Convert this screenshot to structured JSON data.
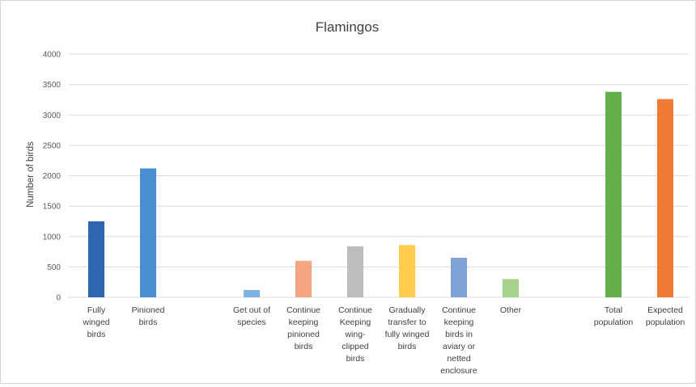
{
  "chart_data": {
    "type": "bar",
    "title": "Flamingos",
    "xlabel": "",
    "ylabel": "Number of birds",
    "ylim": [
      0,
      4000
    ],
    "yticks": [
      0,
      500,
      1000,
      1500,
      2000,
      2500,
      3000,
      3500,
      4000
    ],
    "grid": true,
    "legend": "none",
    "categories": [
      "Fully winged birds",
      "Pinioned birds",
      "Get out of species",
      "Continue keeping pinioned birds",
      "Continue Keeping wing-clipped birds",
      "Gradually transfer to fully winged birds",
      "Continue keeping birds in aviary or netted enclosure",
      "Other",
      "Total population",
      "Expected population"
    ],
    "category_label_lines": [
      [
        "Fully",
        "winged",
        "birds"
      ],
      [
        "Pinioned",
        "birds"
      ],
      [
        "Get out of",
        "species"
      ],
      [
        "Continue",
        "keeping",
        "pinioned",
        "birds"
      ],
      [
        "Continue",
        "Keeping",
        "wing-",
        "clipped",
        "birds"
      ],
      [
        "Gradually",
        "transfer to",
        "fully winged",
        "birds"
      ],
      [
        "Continue",
        "keeping",
        "birds in",
        "aviary or",
        "netted",
        "enclosure"
      ],
      [
        "Other"
      ],
      [
        "Total",
        "population"
      ],
      [
        "Expected",
        "population"
      ]
    ],
    "values": [
      1250,
      2120,
      120,
      600,
      840,
      860,
      650,
      300,
      3380,
      3260
    ],
    "colors": [
      "#2e64b2",
      "#4a8fd4",
      "#7fb3e3",
      "#f4a582",
      "#bdbdbd",
      "#ffcc4d",
      "#7ea1d6",
      "#a9d18e",
      "#63b04a",
      "#ef7a33"
    ]
  }
}
